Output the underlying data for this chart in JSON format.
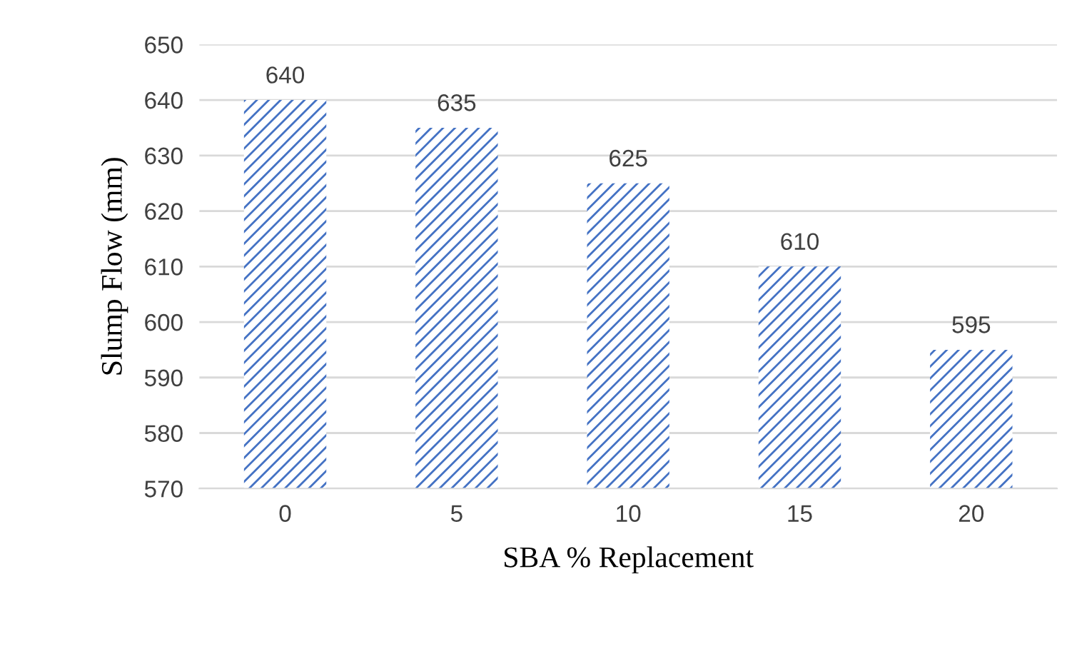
{
  "chart_data": {
    "type": "bar",
    "xlabel": "SBA % Replacement",
    "ylabel": "Slump Flow (mm)",
    "categories": [
      "0",
      "5",
      "10",
      "15",
      "20"
    ],
    "values": [
      640,
      635,
      625,
      610,
      595
    ],
    "color": "#4472c4",
    "ylim": [
      570,
      650
    ],
    "yticks": [
      570,
      580,
      590,
      600,
      610,
      620,
      630,
      640,
      650
    ],
    "grid": "y",
    "data_labels": true
  }
}
